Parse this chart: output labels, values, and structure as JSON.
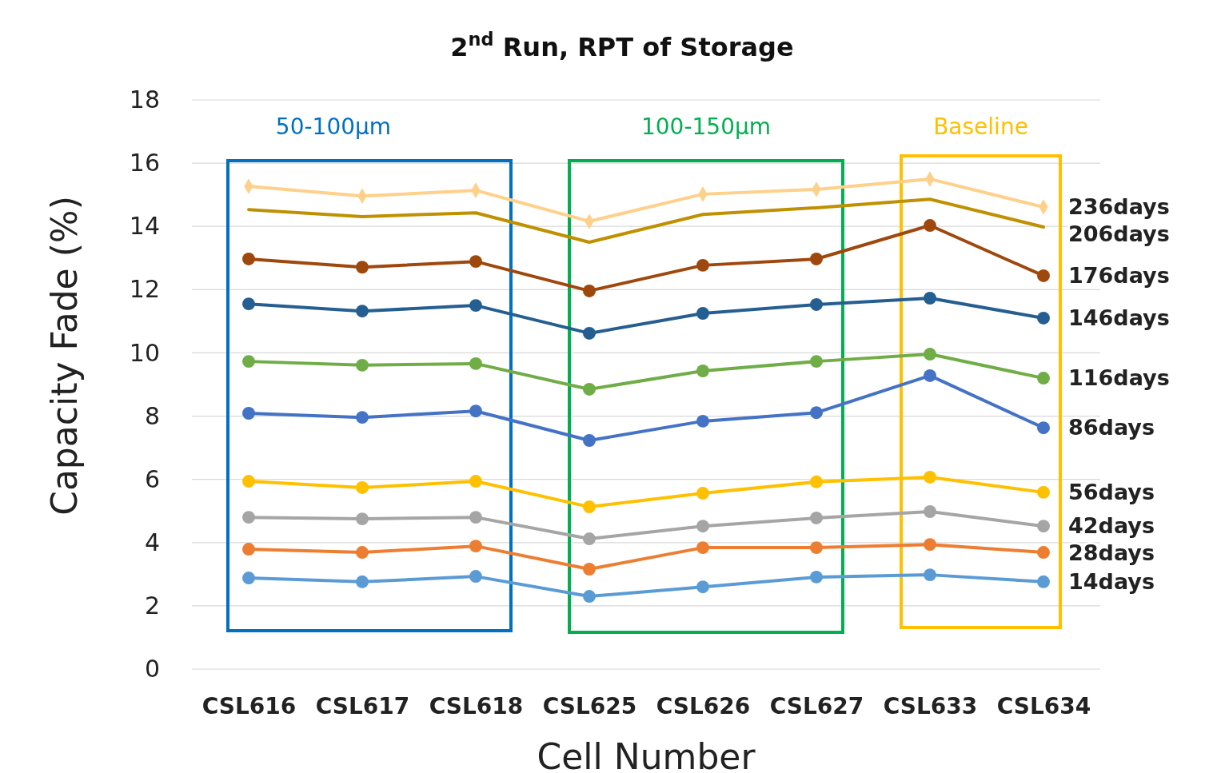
{
  "chart_data": {
    "type": "line",
    "title": "2$^{nd}$ Run, RPT of Storage",
    "xlabel": "Cell Number",
    "ylabel": "Capacity Fade (%)",
    "categories": [
      "CSL616",
      "CSL617",
      "CSL618",
      "CSL625",
      "CSL626",
      "CSL627",
      "CSL633",
      "CSL634"
    ],
    "ylim": [
      0,
      18
    ],
    "yticks": [
      0,
      2,
      4,
      6,
      8,
      10,
      12,
      14,
      16,
      18
    ],
    "grid": "y",
    "legend": false,
    "marker": "circle",
    "line_style": "solid",
    "series": [
      {
        "name": "236days",
        "color": "#ffd08a",
        "marker": "diamond",
        "values": [
          15.27,
          14.96,
          15.14,
          14.16,
          15.02,
          15.17,
          15.5,
          14.61
        ]
      },
      {
        "name": "206days",
        "color": "#bf9000",
        "marker": "none",
        "values": [
          14.53,
          14.31,
          14.43,
          13.5,
          14.38,
          14.59,
          14.86,
          13.98
        ]
      },
      {
        "name": "176days",
        "color": "#9e480e",
        "values": [
          12.97,
          12.71,
          12.89,
          11.96,
          12.77,
          12.97,
          14.03,
          12.44
        ]
      },
      {
        "name": "146days",
        "color": "#255e91",
        "values": [
          11.55,
          11.32,
          11.5,
          10.62,
          11.25,
          11.53,
          11.73,
          11.1
        ]
      },
      {
        "name": "116days",
        "color": "#70ad47",
        "values": [
          9.73,
          9.61,
          9.66,
          8.85,
          9.43,
          9.73,
          9.96,
          9.2
        ]
      },
      {
        "name": "86days",
        "color": "#4472c4",
        "values": [
          8.09,
          7.96,
          8.16,
          7.23,
          7.84,
          8.11,
          9.28,
          7.63
        ]
      },
      {
        "name": "56days",
        "color": "#ffc000",
        "values": [
          5.94,
          5.74,
          5.94,
          5.13,
          5.56,
          5.92,
          6.07,
          5.59
        ]
      },
      {
        "name": "42days",
        "color": "#a5a5a5",
        "values": [
          4.8,
          4.75,
          4.8,
          4.12,
          4.52,
          4.78,
          4.98,
          4.52
        ]
      },
      {
        "name": "28days",
        "color": "#ed7d31",
        "values": [
          3.79,
          3.69,
          3.89,
          3.16,
          3.84,
          3.84,
          3.94,
          3.69
        ]
      },
      {
        "name": "14days",
        "color": "#5b9bd5",
        "values": [
          2.88,
          2.76,
          2.93,
          2.3,
          2.6,
          2.91,
          2.98,
          2.76
        ]
      }
    ],
    "annotations": [
      "50-100µm",
      "100-150µm",
      "Baseline"
    ]
  }
}
